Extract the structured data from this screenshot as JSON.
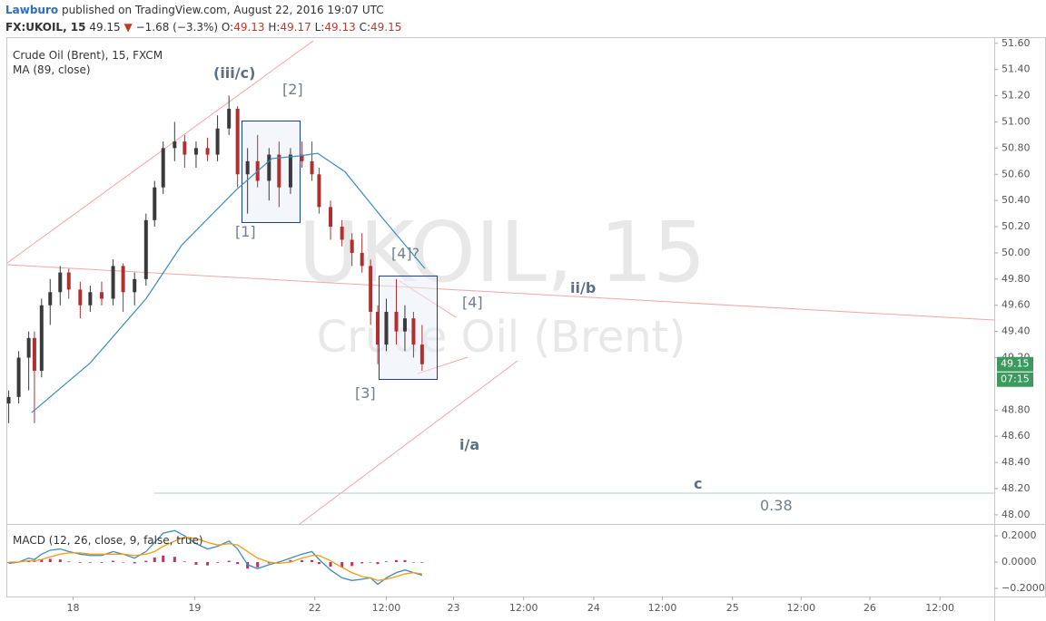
{
  "header": {
    "author": "Lawburo",
    "published": "published on TradingView.com, August 22, 2016 19:07 UTC",
    "symbol": "FX:UKOIL, 15",
    "last": "49.15",
    "change_arrow": "▼",
    "change": "−1.68 (−3.3%)",
    "ohlc": [
      {
        "label": "O:",
        "value": "49.13"
      },
      {
        "label": "H:",
        "value": "49.17"
      },
      {
        "label": "L:",
        "value": "49.13"
      },
      {
        "label": "C:",
        "value": "49.15"
      }
    ]
  },
  "chart_data": {
    "type": "candlestick",
    "legend": [
      "Crude Oil (Brent), 15, FXCM",
      "MA (89, close)"
    ],
    "watermark": [
      "UKOIL, 15",
      "Crude Oil (Brent)"
    ],
    "annotations": [
      "(iii/c)",
      "[2]",
      "[1]",
      "[4]?",
      "[4]",
      "[3]",
      "ii/b",
      "i/a",
      "c",
      "0.38"
    ],
    "up_color": "#3a3a3a",
    "down_color": "#b03030",
    "ma_color": "#3c8dbc",
    "xlim": [
      0,
      690
    ],
    "ylim": [
      47.93,
      51.64
    ],
    "xticks": [
      {
        "value": 46,
        "label": "18"
      },
      {
        "value": 131,
        "label": "19"
      },
      {
        "value": 215,
        "label": "22"
      },
      {
        "value": 265,
        "label": "12:00"
      },
      {
        "value": 312,
        "label": "23"
      },
      {
        "value": 361,
        "label": "12:00"
      },
      {
        "value": 410,
        "label": "24"
      },
      {
        "value": 458,
        "label": "12:00"
      },
      {
        "value": 507,
        "label": "25"
      },
      {
        "value": 555,
        "label": "12:00"
      },
      {
        "value": 603,
        "label": "26"
      },
      {
        "value": 652,
        "label": "12:00"
      }
    ],
    "yticks": [
      {
        "value": 48.0,
        "label": "48.00"
      },
      {
        "value": 48.2,
        "label": "48.20"
      },
      {
        "value": 48.4,
        "label": "48.40"
      },
      {
        "value": 48.6,
        "label": "48.60"
      },
      {
        "value": 48.8,
        "label": "48.80"
      },
      {
        "value": 49.2,
        "label": "49.20"
      },
      {
        "value": 49.4,
        "label": "49.40"
      },
      {
        "value": 49.6,
        "label": "49.60"
      },
      {
        "value": 49.8,
        "label": "49.80"
      },
      {
        "value": 50.0,
        "label": "50.00"
      },
      {
        "value": 50.2,
        "label": "50.20"
      },
      {
        "value": 50.4,
        "label": "50.40"
      },
      {
        "value": 50.6,
        "label": "50.60"
      },
      {
        "value": 50.8,
        "label": "50.80"
      },
      {
        "value": 51.0,
        "label": "51.00"
      },
      {
        "value": 51.2,
        "label": "51.20"
      },
      {
        "value": 51.4,
        "label": "51.40"
      },
      {
        "value": 51.6,
        "label": "51.60"
      }
    ],
    "last_price": 49.15,
    "countdown": "07:15",
    "candles": {
      "x": [
        1,
        8,
        15,
        19,
        24,
        30,
        37,
        43,
        51,
        58,
        66,
        74,
        81,
        89,
        97,
        103,
        109,
        117,
        124,
        132,
        140,
        147,
        155,
        161,
        168,
        175,
        183,
        190,
        198,
        206,
        213,
        218,
        226,
        234,
        241,
        248,
        254,
        259,
        265,
        272,
        278,
        284,
        290
      ],
      "open": [
        48.85,
        48.9,
        49.2,
        49.35,
        49.1,
        49.6,
        49.7,
        49.85,
        49.72,
        49.6,
        49.7,
        49.65,
        49.9,
        49.7,
        49.8,
        50.25,
        50.5,
        50.8,
        50.85,
        50.75,
        50.8,
        50.75,
        50.95,
        51.1,
        50.6,
        50.7,
        50.55,
        50.75,
        50.5,
        50.75,
        50.7,
        50.6,
        50.35,
        50.2,
        50.1,
        50.0,
        49.9,
        49.55,
        49.3,
        49.55,
        49.4,
        49.5,
        49.3
      ],
      "high": [
        48.95,
        49.25,
        49.4,
        49.4,
        49.65,
        49.8,
        49.9,
        49.88,
        49.78,
        49.75,
        49.78,
        49.95,
        49.92,
        49.85,
        50.3,
        50.55,
        50.85,
        51.0,
        50.9,
        50.85,
        50.88,
        51.05,
        51.2,
        51.12,
        50.8,
        50.9,
        50.8,
        50.85,
        50.8,
        50.85,
        50.85,
        50.65,
        50.4,
        50.25,
        50.15,
        50.15,
        49.95,
        49.6,
        49.65,
        49.8,
        49.6,
        49.55,
        49.45
      ],
      "low": [
        48.7,
        48.85,
        48.95,
        48.7,
        49.05,
        49.45,
        49.6,
        49.65,
        49.5,
        49.55,
        49.6,
        49.6,
        49.55,
        49.6,
        49.75,
        50.2,
        50.45,
        50.7,
        50.65,
        50.65,
        50.7,
        50.7,
        50.9,
        50.5,
        50.3,
        50.5,
        50.4,
        50.35,
        50.45,
        50.65,
        50.55,
        50.3,
        50.1,
        50.05,
        49.9,
        49.85,
        49.45,
        49.15,
        49.25,
        49.3,
        49.25,
        49.2,
        49.1
      ],
      "close": [
        48.9,
        49.2,
        49.35,
        49.1,
        49.6,
        49.7,
        49.85,
        49.72,
        49.6,
        49.7,
        49.65,
        49.9,
        49.7,
        49.8,
        50.25,
        50.5,
        50.8,
        50.85,
        50.75,
        50.8,
        50.75,
        50.95,
        51.1,
        50.6,
        50.7,
        50.55,
        50.75,
        50.5,
        50.75,
        50.7,
        50.6,
        50.35,
        50.2,
        50.1,
        50.0,
        49.9,
        49.55,
        49.3,
        49.55,
        49.4,
        49.5,
        49.3,
        49.15
      ]
    },
    "ma": {
      "x": [
        17,
        58,
        97,
        122,
        160,
        185,
        204,
        217,
        236,
        262,
        292
      ],
      "values": [
        48.78,
        49.16,
        49.65,
        50.06,
        50.48,
        50.72,
        50.74,
        50.76,
        50.62,
        50.27,
        49.88
      ]
    },
    "macd": {
      "title": "MACD (12, 26, close, 9, false, true)",
      "macd_color": "#3c8dbc",
      "signal_color": "#f39c12",
      "hist_color": "#c0306a",
      "ylim": [
        -0.262,
        0.276
      ],
      "yticks": [
        {
          "value": 0.2,
          "label": "0.2000"
        },
        {
          "value": 0,
          "label": "0.0000"
        },
        {
          "value": -0.2,
          "label": "−0.2000"
        }
      ],
      "macd": [
        -0.01,
        0.0,
        0.03,
        0.02,
        0.06,
        0.09,
        0.1,
        0.08,
        0.06,
        0.05,
        0.05,
        0.08,
        0.06,
        0.03,
        0.08,
        0.15,
        0.22,
        0.24,
        0.2,
        0.14,
        0.1,
        0.12,
        0.16,
        0.1,
        -0.02,
        -0.05,
        -0.02,
        0.0,
        0.03,
        0.06,
        0.08,
        0.02,
        -0.06,
        -0.12,
        -0.14,
        -0.13,
        -0.12,
        -0.17,
        -0.12,
        -0.08,
        -0.06,
        -0.08,
        -0.1
      ],
      "signal": [
        0.0,
        0.0,
        0.01,
        0.01,
        0.02,
        0.04,
        0.06,
        0.07,
        0.07,
        0.06,
        0.06,
        0.06,
        0.06,
        0.05,
        0.06,
        0.08,
        0.12,
        0.16,
        0.19,
        0.18,
        0.15,
        0.13,
        0.14,
        0.13,
        0.08,
        0.03,
        0.0,
        -0.01,
        0.0,
        0.03,
        0.05,
        0.05,
        0.01,
        -0.04,
        -0.08,
        -0.11,
        -0.12,
        -0.14,
        -0.13,
        -0.11,
        -0.09,
        -0.08,
        -0.09
      ],
      "histogram": [
        -0.005,
        0.0,
        0.01,
        0.005,
        0.02,
        0.025,
        0.02,
        0.005,
        -0.005,
        -0.005,
        -0.005,
        0.01,
        0.0,
        -0.01,
        0.01,
        0.035,
        0.05,
        0.04,
        0.005,
        -0.02,
        -0.025,
        -0.005,
        0.01,
        -0.015,
        -0.05,
        -0.04,
        -0.01,
        0.005,
        0.015,
        0.015,
        0.015,
        -0.015,
        -0.035,
        -0.04,
        -0.03,
        -0.01,
        0.0,
        -0.015,
        0.005,
        0.015,
        0.015,
        0.0,
        -0.005
      ]
    }
  }
}
